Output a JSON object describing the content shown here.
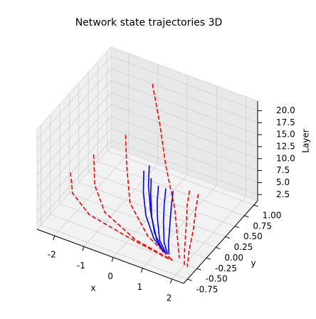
{
  "chart_data": {
    "type": "line3d",
    "title": "Network state trajectories 3D",
    "x_label": "x",
    "y_label": "y",
    "z_label": "Layer",
    "xlim": [
      -2.6,
      2.4
    ],
    "ylim": [
      -0.85,
      1.1
    ],
    "zlim": [
      1.2,
      22
    ],
    "xticks": [
      -2,
      -1,
      0,
      1,
      2
    ],
    "yticks": [
      -0.75,
      {
        "value": -0.5,
        "label": "-0.50"
      },
      -0.25,
      {
        "value": 0,
        "label": "0.00"
      },
      0.25,
      {
        "value": 0.5,
        "label": "0.50"
      },
      0.75,
      {
        "value": 1,
        "label": "1.00"
      }
    ],
    "zticks": [
      2.5,
      {
        "value": 5,
        "label": "5.0"
      },
      7.5,
      {
        "value": 10,
        "label": "10.0"
      },
      12.5,
      {
        "value": 15,
        "label": "15.0"
      },
      17.5,
      {
        "value": 20,
        "label": "20.0"
      }
    ],
    "grid": true,
    "series": [
      {
        "color": "#0000ff",
        "style": "solid",
        "x": [
          0.2,
          0.25,
          0.4,
          0.8,
          1.3
        ],
        "y": [
          -0.2,
          -0.25,
          -0.3,
          -0.4,
          -0.5
        ],
        "z": [
          14,
          10,
          6,
          3,
          2
        ]
      },
      {
        "color": "#0000ff",
        "style": "solid",
        "x": [
          0.45,
          0.5,
          0.6,
          0.9,
          1.3
        ],
        "y": [
          -0.2,
          -0.25,
          -0.3,
          -0.4,
          -0.5
        ],
        "z": [
          13,
          10,
          6,
          3,
          2
        ]
      },
      {
        "color": "#0000ff",
        "style": "solid",
        "x": [
          0.7,
          0.72,
          0.8,
          1.0,
          1.35
        ],
        "y": [
          -0.2,
          -0.25,
          -0.3,
          -0.4,
          -0.5
        ],
        "z": [
          12,
          9,
          6,
          3,
          2
        ]
      },
      {
        "color": "#0000ff",
        "style": "solid",
        "x": [
          0.95,
          0.96,
          1.0,
          1.15,
          1.4
        ],
        "y": [
          -0.2,
          -0.25,
          -0.3,
          -0.4,
          -0.5
        ],
        "z": [
          12,
          9,
          6,
          3,
          2
        ]
      },
      {
        "color": "#0000ff",
        "style": "solid",
        "x": [
          1.2,
          1.2,
          1.22,
          1.3,
          1.45
        ],
        "y": [
          -0.2,
          -0.25,
          -0.3,
          -0.4,
          -0.5
        ],
        "z": [
          12,
          9,
          6,
          3,
          2
        ]
      },
      {
        "color": "#0000ff",
        "style": "solid",
        "x": [
          0.0,
          0.1,
          0.3,
          0.7,
          1.25
        ],
        "y": [
          0.1,
          0.0,
          -0.1,
          -0.3,
          -0.5
        ],
        "z": [
          12,
          9,
          5,
          3,
          2
        ]
      },
      {
        "color": "#ff0000",
        "style": "dashed",
        "x": [
          -0.8,
          -0.3,
          0.3,
          1.0,
          1.8
        ],
        "y": [
          0.8,
          0.6,
          0.3,
          0.0,
          -0.5
        ],
        "z": [
          21,
          16,
          11,
          6,
          2
        ]
      },
      {
        "color": "#ff0000",
        "style": "dashed",
        "x": [
          -2.3,
          -2.1,
          -1.4,
          0.0,
          1.6
        ],
        "y": [
          -0.2,
          -0.3,
          -0.4,
          -0.5,
          -0.6
        ],
        "z": [
          8,
          5,
          3,
          2.5,
          2.2
        ]
      },
      {
        "color": "#ff0000",
        "style": "dashed",
        "x": [
          -1.9,
          -1.6,
          -1.0,
          0.3,
          1.7
        ],
        "y": [
          0.1,
          -0.1,
          -0.3,
          -0.5,
          -0.6
        ],
        "z": [
          10,
          6,
          3.5,
          2.5,
          2.2
        ]
      },
      {
        "color": "#ff0000",
        "style": "dashed",
        "x": [
          1.5,
          1.55,
          1.65,
          1.85,
          2.1
        ],
        "y": [
          0.0,
          -0.1,
          -0.2,
          -0.4,
          -0.6
        ],
        "z": [
          11,
          9,
          6,
          3,
          2
        ]
      },
      {
        "color": "#ff0000",
        "style": "dashed",
        "x": [
          1.8,
          1.85,
          1.9,
          2.0,
          2.2
        ],
        "y": [
          0.0,
          -0.1,
          -0.2,
          -0.4,
          -0.6
        ],
        "z": [
          11,
          9,
          6,
          3,
          2
        ]
      },
      {
        "color": "#ff0000",
        "style": "dashed",
        "x": [
          -1.2,
          -0.9,
          -0.4,
          0.6,
          1.7
        ],
        "y": [
          0.4,
          0.2,
          -0.1,
          -0.4,
          -0.6
        ],
        "z": [
          13,
          9,
          5,
          3,
          2.2
        ]
      }
    ]
  }
}
